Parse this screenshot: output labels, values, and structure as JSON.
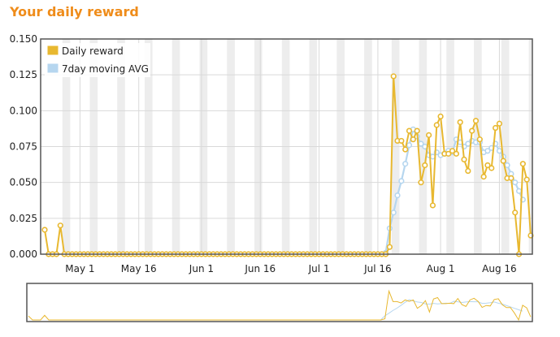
{
  "title": "Your daily reward",
  "colors": {
    "title": "#ef8c1a",
    "daily": "#e8b830",
    "avg": "#b6d6ef",
    "band": "#ededed",
    "grid": "#d9d9d9",
    "frame": "#555555"
  },
  "chart_data": {
    "type": "line",
    "title": "",
    "xlabel": "",
    "ylabel": "",
    "x_start": "Apr 22",
    "x_end": "Aug 29",
    "x_ticks": [
      "May 1",
      "May 16",
      "Jun 1",
      "Jun 16",
      "Jul 1",
      "Jul 16",
      "Aug 1",
      "Aug 16"
    ],
    "ylim": [
      0,
      0.15
    ],
    "y_ticks": [
      "0.000",
      "0.025",
      "0.050",
      "0.075",
      "0.100",
      "0.125",
      "0.150"
    ],
    "grid": true,
    "legend_position": "top-left",
    "series": [
      {
        "name": "Daily reward",
        "color": "#e8b830",
        "values": [
          0.017,
          0,
          0,
          0,
          0.02,
          0,
          0,
          0,
          0,
          0,
          0,
          0,
          0,
          0,
          0,
          0,
          0,
          0,
          0,
          0,
          0,
          0,
          0,
          0,
          0,
          0,
          0,
          0,
          0,
          0,
          0,
          0,
          0,
          0,
          0,
          0,
          0,
          0,
          0,
          0,
          0,
          0,
          0,
          0,
          0,
          0,
          0,
          0,
          0,
          0,
          0,
          0,
          0,
          0,
          0,
          0,
          0,
          0,
          0,
          0,
          0,
          0,
          0,
          0,
          0,
          0,
          0,
          0,
          0,
          0,
          0,
          0,
          0,
          0,
          0,
          0,
          0,
          0,
          0,
          0,
          0,
          0,
          0,
          0,
          0,
          0,
          0,
          0,
          0.005,
          0.124,
          0.079,
          0.079,
          0.073,
          0.086,
          0.08,
          0.086,
          0.05,
          0.062,
          0.083,
          0.034,
          0.09,
          0.096,
          0.07,
          0.07,
          0.072,
          0.07,
          0.092,
          0.066,
          0.058,
          0.086,
          0.093,
          0.08,
          0.054,
          0.062,
          0.06,
          0.088,
          0.091,
          0.065,
          0.053,
          0.053,
          0.029,
          0,
          0.063,
          0.052,
          0.013
        ]
      },
      {
        "name": "7day moving AVG",
        "color": "#b6d6ef",
        "values": [
          null,
          null,
          null,
          null,
          null,
          null,
          null,
          null,
          null,
          null,
          null,
          null,
          null,
          null,
          null,
          null,
          null,
          null,
          null,
          null,
          null,
          null,
          null,
          null,
          null,
          null,
          null,
          null,
          null,
          null,
          null,
          null,
          null,
          null,
          null,
          null,
          null,
          null,
          null,
          null,
          null,
          null,
          null,
          null,
          null,
          null,
          null,
          null,
          null,
          null,
          null,
          null,
          null,
          null,
          null,
          null,
          null,
          null,
          null,
          null,
          null,
          null,
          null,
          null,
          null,
          null,
          null,
          null,
          null,
          null,
          null,
          null,
          null,
          null,
          null,
          null,
          null,
          null,
          null,
          null,
          null,
          null,
          null,
          null,
          null,
          null,
          null,
          0.001,
          0.018,
          0.029,
          0.041,
          0.051,
          0.063,
          0.076,
          0.087,
          0.082,
          0.077,
          0.075,
          0.069,
          0.068,
          0.071,
          0.069,
          0.07,
          0.072,
          0.071,
          0.08,
          0.078,
          0.075,
          0.077,
          0.079,
          0.078,
          0.078,
          0.071,
          0.072,
          0.074,
          0.077,
          0.072,
          0.068,
          0.062,
          0.056,
          0.05,
          0.044,
          0.038
        ]
      }
    ]
  }
}
